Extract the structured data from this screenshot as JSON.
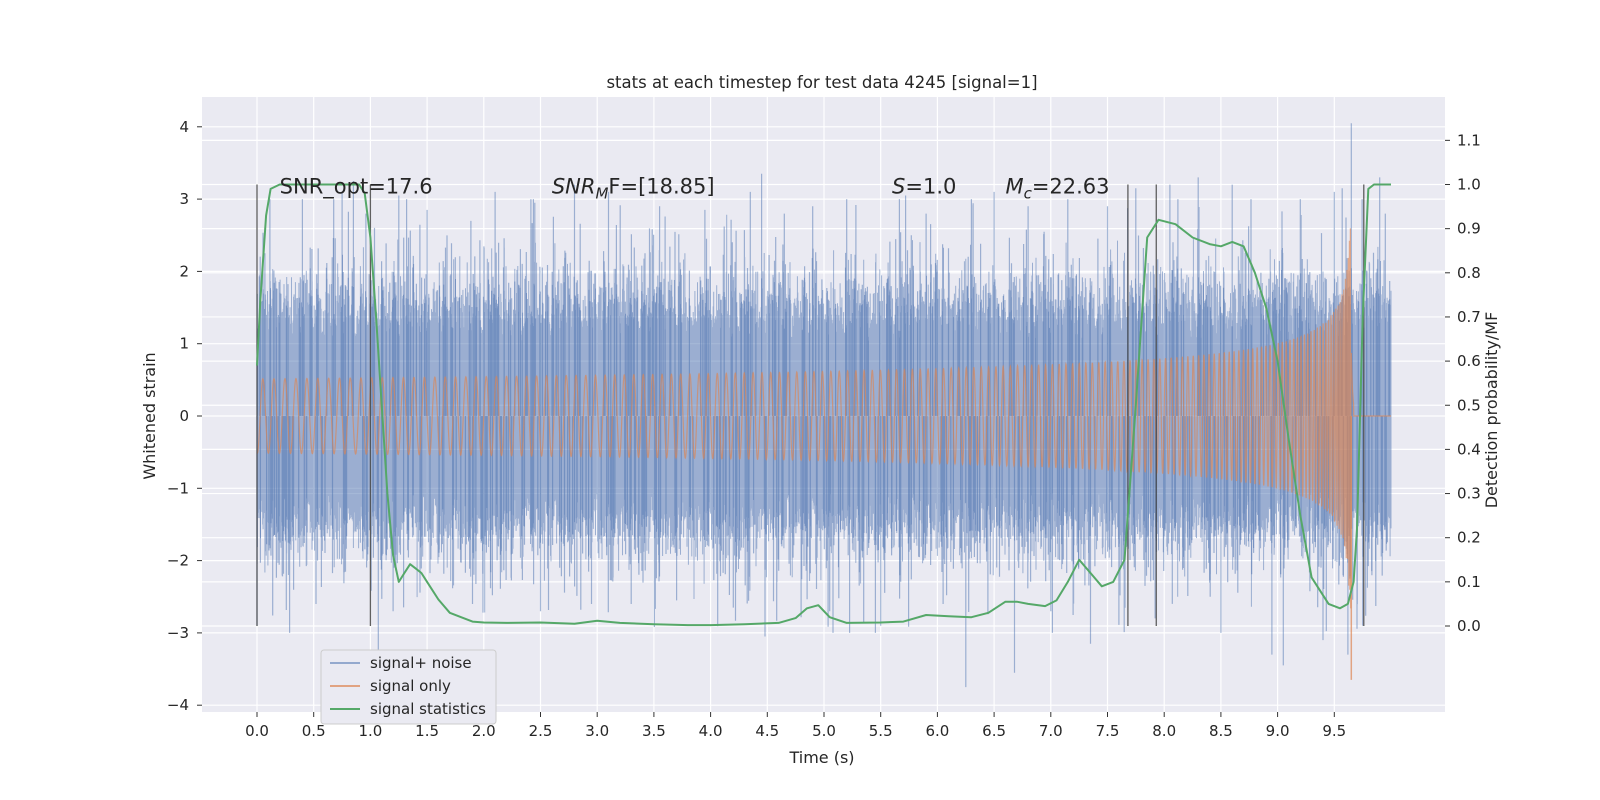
{
  "chart_data": {
    "type": "line",
    "title": "stats at each timestep for test data 4245 [signal=1]",
    "xlabel": "Time (s)",
    "ylabel": "Whitened strain",
    "y2label": "Detection probability/MF",
    "xlim": [
      -0.48,
      10.5
    ],
    "ylim": [
      -4.15,
      4.4
    ],
    "y2lim": [
      -0.19,
      1.2
    ],
    "xticks": [
      "0.0",
      "0.5",
      "1.0",
      "1.5",
      "2.0",
      "2.5",
      "3.0",
      "3.5",
      "4.0",
      "4.5",
      "5.0",
      "5.5",
      "6.0",
      "6.5",
      "7.0",
      "7.5",
      "8.0",
      "8.5",
      "9.0",
      "9.5"
    ],
    "yticks": [
      "4",
      "3",
      "2",
      "1",
      "0",
      "−1",
      "−2",
      "−3",
      "−4"
    ],
    "y2ticks": [
      "1.1",
      "1.0",
      "0.9",
      "0.8",
      "0.7",
      "0.6",
      "0.5",
      "0.4",
      "0.3",
      "0.2",
      "0.1",
      "0.0"
    ],
    "grid": true,
    "legend_position": "lower-left",
    "colors": {
      "background": "#eaeaf2",
      "grid": "#ffffff",
      "noise": "#4c72b0",
      "signal": "#dd8452",
      "stats": "#55a868",
      "vlines": "#444444"
    },
    "series": [
      {
        "name": "signal+ noise",
        "description_envelope": "whitened strain noise, core |y| about 1.35, spikes up to 3.4, max 4.05 at t=9.65, min -3.75 at t=6.25",
        "t_range": [
          0.0,
          10.0
        ],
        "core_amplitude": 1.35,
        "spikes": [
          [
            0.0,
            -2.9
          ],
          [
            0.07,
            2.25
          ],
          [
            0.4,
            3.0
          ],
          [
            0.52,
            -2.6
          ],
          [
            0.75,
            3.1
          ],
          [
            0.85,
            3.25
          ],
          [
            0.96,
            2.8
          ],
          [
            1.07,
            -3.3
          ],
          [
            1.2,
            -2.7
          ],
          [
            1.25,
            3.05
          ],
          [
            1.5,
            2.85
          ],
          [
            1.9,
            -2.6
          ],
          [
            2.1,
            3.1
          ],
          [
            2.45,
            2.95
          ],
          [
            2.5,
            -2.7
          ],
          [
            2.8,
            3.2
          ],
          [
            2.95,
            -2.6
          ],
          [
            3.1,
            3.1
          ],
          [
            3.3,
            -2.6
          ],
          [
            3.55,
            2.9
          ],
          [
            3.7,
            -2.55
          ],
          [
            3.95,
            2.85
          ],
          [
            4.2,
            -2.65
          ],
          [
            4.35,
            3.1
          ],
          [
            4.45,
            3.35
          ],
          [
            4.48,
            -3.05
          ],
          [
            4.65,
            2.8
          ],
          [
            4.9,
            2.9
          ],
          [
            5.05,
            -2.7
          ],
          [
            5.2,
            3.0
          ],
          [
            5.35,
            -2.85
          ],
          [
            5.5,
            -2.9
          ],
          [
            5.72,
            3.05
          ],
          [
            5.9,
            2.8
          ],
          [
            6.05,
            -2.6
          ],
          [
            6.25,
            -3.75
          ],
          [
            6.3,
            3.0
          ],
          [
            6.5,
            3.1
          ],
          [
            6.68,
            -3.55
          ],
          [
            6.8,
            2.9
          ],
          [
            7.0,
            -2.7
          ],
          [
            7.15,
            3.0
          ],
          [
            7.35,
            -3.15
          ],
          [
            7.5,
            2.9
          ],
          [
            7.75,
            3.15
          ],
          [
            7.92,
            -2.8
          ],
          [
            8.05,
            3.2
          ],
          [
            8.3,
            3.3
          ],
          [
            8.5,
            -3.0
          ],
          [
            8.6,
            3.2
          ],
          [
            8.95,
            -3.3
          ],
          [
            9.05,
            -3.45
          ],
          [
            9.2,
            3.0
          ],
          [
            9.4,
            -3.1
          ],
          [
            9.5,
            3.1
          ],
          [
            9.57,
            3.15
          ],
          [
            9.62,
            -3.3
          ],
          [
            9.65,
            4.05
          ],
          [
            9.75,
            -2.9
          ],
          [
            9.9,
            3.3
          ],
          [
            9.95,
            2.8
          ]
        ]
      },
      {
        "name": "signal only",
        "description": "chirp, near zero until ~5 s, grows to ±3.6 at merger t=9.65",
        "t_range": [
          0.0,
          10.0
        ],
        "merger_time": 9.65,
        "peak_amplitude": 3.6,
        "min_value": -3.65
      },
      {
        "name": "signal statistics",
        "axis": "right",
        "x": [
          0.0,
          0.03,
          0.08,
          0.12,
          0.2,
          0.3,
          0.5,
          0.7,
          0.8,
          0.9,
          0.95,
          1.0,
          1.05,
          1.1,
          1.15,
          1.2,
          1.25,
          1.3,
          1.35,
          1.4,
          1.45,
          1.5,
          1.6,
          1.7,
          1.8,
          1.9,
          2.0,
          2.2,
          2.5,
          2.8,
          3.0,
          3.2,
          3.5,
          3.8,
          4.0,
          4.3,
          4.6,
          4.75,
          4.85,
          4.95,
          5.05,
          5.2,
          5.5,
          5.7,
          5.9,
          6.1,
          6.3,
          6.45,
          6.6,
          6.7,
          6.8,
          6.95,
          7.05,
          7.15,
          7.25,
          7.35,
          7.45,
          7.55,
          7.65,
          7.75,
          7.85,
          7.95,
          8.1,
          8.25,
          8.4,
          8.5,
          8.6,
          8.7,
          8.8,
          8.9,
          9.0,
          9.1,
          9.2,
          9.3,
          9.45,
          9.55,
          9.62,
          9.67,
          9.7,
          9.75,
          9.8,
          9.85,
          9.9,
          10.0
        ],
        "y": [
          0.59,
          0.74,
          0.93,
          0.99,
          1.0,
          1.0,
          1.0,
          1.0,
          1.0,
          1.0,
          0.98,
          0.88,
          0.7,
          0.5,
          0.3,
          0.16,
          0.1,
          0.12,
          0.14,
          0.13,
          0.12,
          0.1,
          0.06,
          0.03,
          0.02,
          0.01,
          0.008,
          0.007,
          0.008,
          0.005,
          0.012,
          0.007,
          0.004,
          0.002,
          0.002,
          0.004,
          0.007,
          0.018,
          0.04,
          0.047,
          0.02,
          0.007,
          0.008,
          0.01,
          0.025,
          0.022,
          0.02,
          0.03,
          0.055,
          0.055,
          0.05,
          0.045,
          0.058,
          0.1,
          0.15,
          0.12,
          0.09,
          0.1,
          0.15,
          0.5,
          0.88,
          0.92,
          0.91,
          0.88,
          0.865,
          0.86,
          0.87,
          0.86,
          0.8,
          0.72,
          0.6,
          0.42,
          0.25,
          0.11,
          0.05,
          0.04,
          0.05,
          0.1,
          0.22,
          0.7,
          0.99,
          1.0,
          1.0,
          1.0
        ]
      }
    ],
    "vertical_lines": [
      0.0,
      1.0,
      7.68,
      7.93,
      9.76
    ],
    "vlines_y2_range": [
      0.0,
      1.0
    ],
    "annotations": [
      {
        "text": "SNR_opt=17.6",
        "x": 0.2,
        "y2": 0.98
      },
      {
        "text_main": "SNR",
        "text_sub": "M",
        "text_tail": "F=[18.85]",
        "x": 2.6,
        "y2": 0.98
      },
      {
        "text_main": "S",
        "text_tail": "=1.0",
        "x": 5.6,
        "y2": 0.98
      },
      {
        "text_main": "M",
        "text_sub": "c",
        "text_tail": "=22.63",
        "x": 6.6,
        "y2": 0.98
      }
    ]
  }
}
